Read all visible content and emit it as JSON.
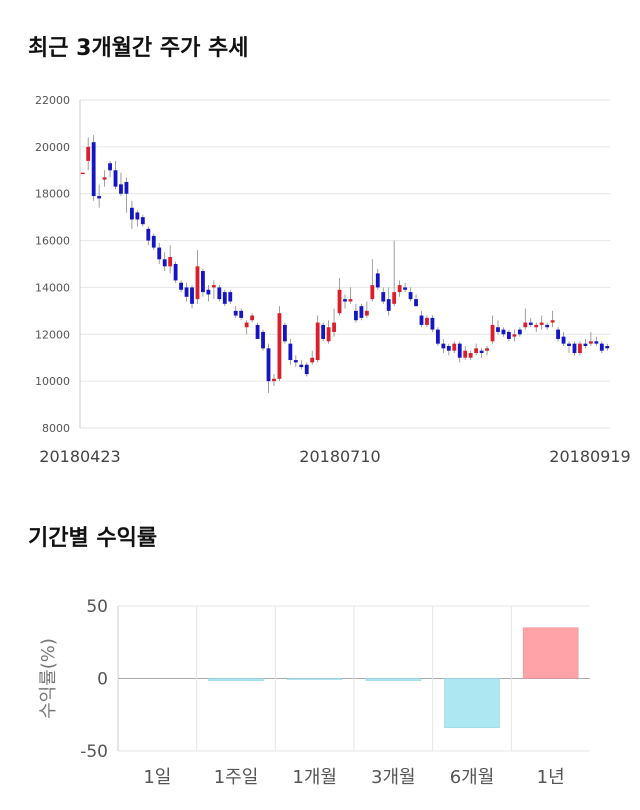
{
  "sections": {
    "price_title": "최근 3개월간 주가 추세",
    "returns_title": "기간별 수익률"
  },
  "colors": {
    "up": "#d9202a",
    "down": "#1515c4",
    "positive_bar": "#ffa3a8",
    "negative_bar": "#ade8f2",
    "grid": "#e6e6e6"
  },
  "chart_data": [
    {
      "type": "candlestick",
      "title": "최근 3개월간 주가 추세",
      "ylim": [
        8000,
        22000
      ],
      "y_ticks": [
        8000,
        10000,
        12000,
        14000,
        16000,
        18000,
        20000,
        22000
      ],
      "x_tick_labels": [
        "20180423",
        "20180710",
        "20180919"
      ],
      "grid": true,
      "candles": [
        [
          18900,
          18900,
          18900,
          18900
        ],
        [
          19400,
          20400,
          19000,
          20000
        ],
        [
          20200,
          20500,
          17700,
          17900
        ],
        [
          17900,
          18400,
          17400,
          17800
        ],
        [
          18600,
          19000,
          18300,
          18700
        ],
        [
          19300,
          19400,
          18700,
          19000
        ],
        [
          19000,
          19400,
          18200,
          18300
        ],
        [
          18400,
          18900,
          17900,
          18000
        ],
        [
          18500,
          18700,
          17200,
          18000
        ],
        [
          17400,
          17700,
          16500,
          16900
        ],
        [
          17200,
          17300,
          16600,
          16900
        ],
        [
          17000,
          17100,
          16600,
          16700
        ],
        [
          16500,
          16600,
          15800,
          16000
        ],
        [
          16200,
          16300,
          15600,
          15700
        ],
        [
          15700,
          15900,
          15000,
          15200
        ],
        [
          15200,
          15500,
          14700,
          14900
        ],
        [
          14900,
          15800,
          14600,
          15300
        ],
        [
          15000,
          15100,
          14200,
          14300
        ],
        [
          14200,
          14300,
          13800,
          13900
        ],
        [
          14000,
          14200,
          13400,
          13600
        ],
        [
          14000,
          14100,
          13100,
          13300
        ],
        [
          13500,
          15600,
          13300,
          14900
        ],
        [
          14700,
          14800,
          13600,
          13800
        ],
        [
          13900,
          14100,
          13400,
          13700
        ],
        [
          14000,
          14300,
          13500,
          14100
        ],
        [
          14000,
          14100,
          13400,
          13500
        ],
        [
          13800,
          13900,
          13200,
          13300
        ],
        [
          13800,
          13900,
          13300,
          13400
        ],
        [
          13000,
          13200,
          12700,
          12800
        ],
        [
          13000,
          13100,
          12600,
          12700
        ],
        [
          12300,
          12600,
          12000,
          12500
        ],
        [
          12600,
          12900,
          12500,
          12800
        ],
        [
          12400,
          12500,
          11800,
          11800
        ],
        [
          12100,
          12200,
          11300,
          11400
        ],
        [
          11400,
          11600,
          9500,
          10000
        ],
        [
          10000,
          10300,
          9800,
          10100
        ],
        [
          10100,
          13200,
          10000,
          12900
        ],
        [
          12400,
          12500,
          11600,
          11700
        ],
        [
          11600,
          11800,
          10700,
          10900
        ],
        [
          10900,
          11100,
          10600,
          10800
        ],
        [
          10700,
          10900,
          10500,
          10600
        ],
        [
          10700,
          10800,
          10200,
          10300
        ],
        [
          10800,
          11300,
          10700,
          11000
        ],
        [
          10900,
          12800,
          10800,
          12500
        ],
        [
          12400,
          12500,
          11700,
          11800
        ],
        [
          11700,
          12600,
          11600,
          12300
        ],
        [
          12100,
          13100,
          11900,
          12500
        ],
        [
          12900,
          14400,
          12800,
          13900
        ],
        [
          13500,
          13700,
          13100,
          13400
        ],
        [
          13400,
          14000,
          13300,
          13500
        ],
        [
          13000,
          13300,
          12500,
          12600
        ],
        [
          13200,
          13300,
          12600,
          12700
        ],
        [
          12800,
          13400,
          12700,
          13000
        ],
        [
          13500,
          15200,
          13400,
          14100
        ],
        [
          14600,
          14800,
          13900,
          14000
        ],
        [
          13800,
          14000,
          13300,
          13400
        ],
        [
          13500,
          14000,
          12800,
          13000
        ],
        [
          13300,
          16000,
          13200,
          13800
        ],
        [
          13800,
          14300,
          13600,
          14100
        ],
        [
          14000,
          14200,
          13800,
          13900
        ],
        [
          13800,
          14000,
          13400,
          13500
        ],
        [
          13500,
          13700,
          13200,
          13200
        ],
        [
          12800,
          13000,
          12300,
          12400
        ],
        [
          12400,
          12800,
          12300,
          12700
        ],
        [
          12700,
          12800,
          12100,
          12200
        ],
        [
          12200,
          12300,
          11500,
          11600
        ],
        [
          11600,
          11800,
          11200,
          11400
        ],
        [
          11500,
          11600,
          11100,
          11300
        ],
        [
          11300,
          11700,
          11200,
          11600
        ],
        [
          11600,
          11700,
          10800,
          11000
        ],
        [
          11000,
          11500,
          10900,
          11300
        ],
        [
          11000,
          11300,
          10900,
          11200
        ],
        [
          11200,
          11600,
          11100,
          11400
        ],
        [
          11300,
          11400,
          11000,
          11200
        ],
        [
          11300,
          11500,
          11100,
          11400
        ],
        [
          11700,
          12800,
          11600,
          12400
        ],
        [
          12300,
          12600,
          12000,
          12100
        ],
        [
          12200,
          12300,
          11900,
          12000
        ],
        [
          12100,
          12200,
          11700,
          11800
        ],
        [
          11900,
          12200,
          11700,
          12000
        ],
        [
          12200,
          12300,
          11900,
          12000
        ],
        [
          12300,
          13100,
          12200,
          12500
        ],
        [
          12500,
          12700,
          12300,
          12400
        ],
        [
          12300,
          12500,
          12100,
          12400
        ],
        [
          12400,
          12800,
          12200,
          12500
        ],
        [
          12400,
          12500,
          12200,
          12300
        ],
        [
          12500,
          13000,
          12300,
          12600
        ],
        [
          12200,
          12300,
          11700,
          11800
        ],
        [
          11900,
          12100,
          11500,
          11600
        ],
        [
          11600,
          11700,
          11200,
          11500
        ],
        [
          11600,
          11700,
          11100,
          11200
        ],
        [
          11200,
          11700,
          11100,
          11600
        ],
        [
          11600,
          11800,
          11400,
          11500
        ],
        [
          11600,
          12100,
          11500,
          11700
        ],
        [
          11700,
          11900,
          11500,
          11600
        ],
        [
          11600,
          11700,
          11200,
          11300
        ],
        [
          11500,
          11600,
          11300,
          11400
        ]
      ]
    },
    {
      "type": "bar",
      "categories": [
        "1일",
        "1주일",
        "1개월",
        "3개월",
        "6개월",
        "1년"
      ],
      "values": [
        0,
        -1.5,
        -0.3,
        -1.5,
        -34,
        35
      ],
      "ylabel": "수익률(%)",
      "ylim": [
        -50,
        50
      ],
      "y_ticks": [
        -50,
        0,
        50
      ],
      "grid": true
    }
  ]
}
